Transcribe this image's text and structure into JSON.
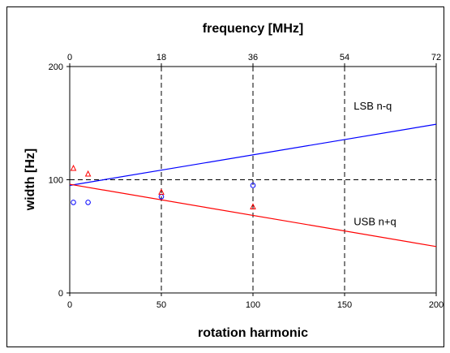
{
  "chart_data": {
    "type": "scatter",
    "title": "",
    "xlabel": "rotation harmonic",
    "ylabel": "width [Hz]",
    "x2label": "frequency  [MHz]",
    "xlim": [
      0,
      200
    ],
    "ylim": [
      0,
      200
    ],
    "x_ticks": [
      "0",
      "50",
      "100",
      "150",
      "200"
    ],
    "y_ticks": [
      "0",
      "100",
      "200"
    ],
    "x2_ticks": [
      "0",
      "18",
      "36",
      "54",
      "72"
    ],
    "grid": "dashed lines at x=50,100,150 and y=100",
    "series": [
      {
        "name": "LSB n-q",
        "kind": "line",
        "color": "#0000ff",
        "x": [
          0,
          200
        ],
        "y": [
          95,
          149
        ]
      },
      {
        "name": "USB n+q",
        "kind": "line",
        "color": "#ff0000",
        "x": [
          0,
          200
        ],
        "y": [
          96,
          41
        ]
      },
      {
        "name": "",
        "kind": "markers",
        "marker": "circle",
        "color": "#0000ff",
        "x": [
          2,
          10,
          50,
          100
        ],
        "y": [
          80,
          80,
          85,
          95
        ]
      },
      {
        "name": "",
        "kind": "markers",
        "marker": "triangle",
        "color": "#ff0000",
        "x": [
          2,
          10,
          50,
          100
        ],
        "y": [
          110,
          105,
          89,
          76
        ]
      }
    ],
    "annotations": [
      {
        "text": "LSB n-q",
        "x": 155,
        "y": 162
      },
      {
        "text": "USB n+q",
        "x": 155,
        "y": 60
      }
    ]
  }
}
